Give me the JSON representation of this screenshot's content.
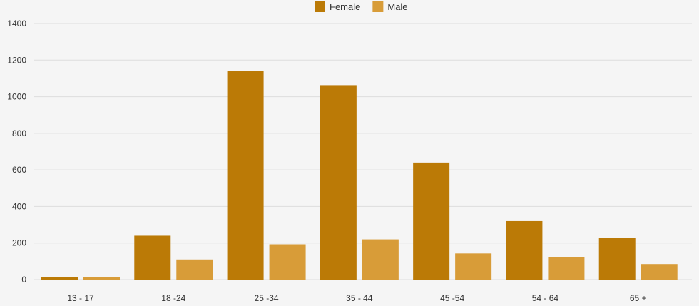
{
  "chart_data": {
    "type": "bar",
    "categories": [
      "13 - 17",
      "18 -24",
      "25 -34",
      "35 - 44",
      "45 -54",
      "54 - 64",
      "65 +"
    ],
    "series": [
      {
        "name": "Female",
        "color": "#bb7a06",
        "values": [
          15,
          240,
          1140,
          1063,
          640,
          320,
          228
        ]
      },
      {
        "name": "Male",
        "color": "#d89c38",
        "values": [
          15,
          110,
          193,
          220,
          143,
          122,
          85
        ]
      }
    ],
    "ylim": [
      0,
      1400
    ],
    "yticks": [
      0,
      200,
      400,
      600,
      800,
      1000,
      1200,
      1400
    ],
    "grid": true,
    "legend_position": "top-center",
    "title": "",
    "xlabel": "",
    "ylabel": ""
  }
}
